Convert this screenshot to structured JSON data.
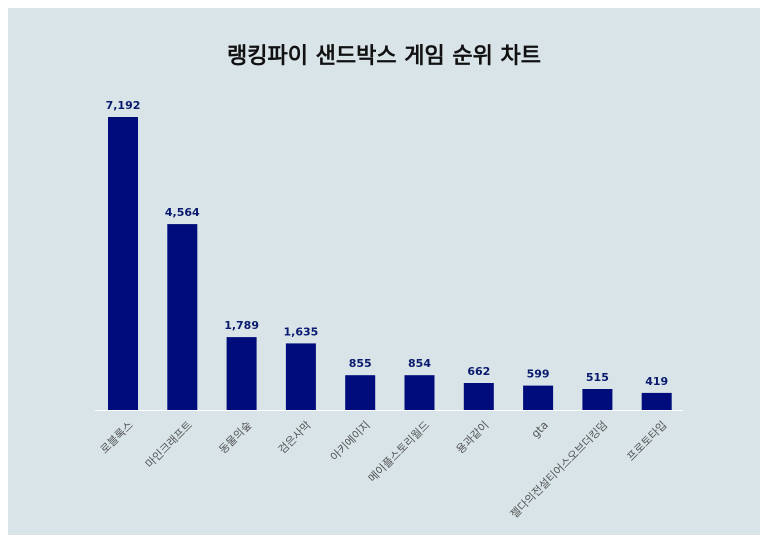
{
  "chart_data": {
    "type": "bar",
    "title": "랭킹파이 샌드박스 게임 순위 차트",
    "categories": [
      "로블록스",
      "마인크래프트",
      "동물의숲",
      "검은사막",
      "아키에이지",
      "메이플스토리월드",
      "용과같이",
      "gta",
      "젤다의전설티어스오브더킹덤",
      "프로토타입"
    ],
    "values": [
      7192,
      4564,
      1789,
      1635,
      855,
      854,
      662,
      599,
      515,
      419
    ],
    "value_labels": [
      "7,192",
      "4,564",
      "1,789",
      "1,635",
      "855",
      "854",
      "662",
      "599",
      "515",
      "419"
    ],
    "ylim": [
      0,
      7192
    ],
    "grid": false,
    "legend": "none",
    "bar_color": "#000c7b",
    "background_color": "#d8e4e8"
  }
}
